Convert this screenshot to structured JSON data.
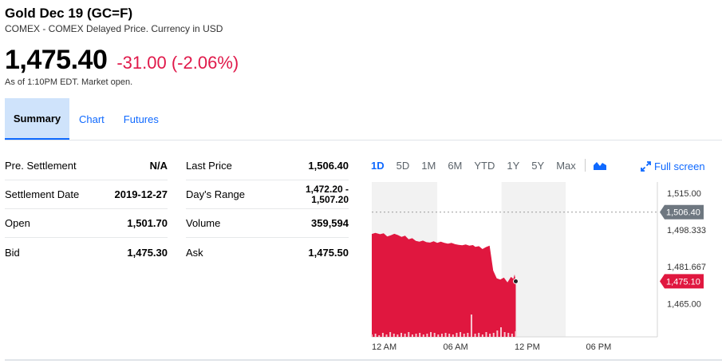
{
  "header": {
    "title": "Gold Dec 19 (GC=F)",
    "subtitle": "COMEX - COMEX Delayed Price. Currency in USD"
  },
  "quote": {
    "price": "1,475.40",
    "change": "-31.00 (-2.06%)",
    "as_of": "As of 1:10PM EDT. Market open.",
    "change_color": "#e0194a"
  },
  "tabs": [
    {
      "label": "Summary",
      "active": true
    },
    {
      "label": "Chart",
      "active": false
    },
    {
      "label": "Futures",
      "active": false
    }
  ],
  "stats_left": [
    {
      "label": "Pre. Settlement",
      "value": "N/A"
    },
    {
      "label": "Settlement Date",
      "value": "2019-12-27"
    },
    {
      "label": "Open",
      "value": "1,501.70"
    },
    {
      "label": "Bid",
      "value": "1,475.30"
    }
  ],
  "stats_right": [
    {
      "label": "Last Price",
      "value": "1,506.40"
    },
    {
      "label": "Day's Range",
      "value_line1": "1,472.20 -",
      "value_line2": "1,507.20"
    },
    {
      "label": "Volume",
      "value": "359,594"
    },
    {
      "label": "Ask",
      "value": "1,475.50"
    }
  ],
  "chart_controls": {
    "ranges": [
      "1D",
      "5D",
      "1M",
      "6M",
      "YTD",
      "1Y",
      "5Y",
      "Max"
    ],
    "active_range": "1D",
    "chart_type_icon": "mountain-chart-icon",
    "fullscreen_label": "Full screen",
    "fullscreen_icon": "expand-arrows-icon"
  },
  "chart_data": {
    "type": "area",
    "y_ticks": [
      "1,515.00",
      "1,498.333",
      "1,481.667",
      "1,465.00"
    ],
    "y_tick_values": [
      1515.0,
      1498.333,
      1481.667,
      1465.0
    ],
    "ylim": [
      1450.0,
      1520.0
    ],
    "x_ticks": [
      "12 AM",
      "06 AM",
      "12 PM",
      "06 PM"
    ],
    "x_tick_hours": [
      0,
      6,
      12,
      18
    ],
    "xlim_hours": [
      0,
      24
    ],
    "prev_close_label": "1,506.40",
    "prev_close_value": 1506.4,
    "last_label": "1,475.10",
    "last_value": 1475.1,
    "x_hours": [
      0,
      0.3,
      0.7,
      1.0,
      1.3,
      1.6,
      1.9,
      2.2,
      2.5,
      2.8,
      3.1,
      3.4,
      3.7,
      4.0,
      4.3,
      4.6,
      4.9,
      5.2,
      5.5,
      5.8,
      6.1,
      6.4,
      6.7,
      7.0,
      7.3,
      7.6,
      7.9,
      8.2,
      8.5,
      8.7,
      9.0,
      9.3,
      9.6,
      9.9,
      10.2,
      10.5,
      10.8,
      11.1,
      11.4,
      11.7,
      11.9,
      12.0,
      12.1
    ],
    "values": [
      1496.5,
      1497.0,
      1496.4,
      1496.8,
      1495.4,
      1495.9,
      1496.6,
      1496.0,
      1495.2,
      1495.7,
      1494.1,
      1494.6,
      1493.4,
      1493.0,
      1493.5,
      1492.8,
      1492.6,
      1493.2,
      1492.5,
      1493.0,
      1492.5,
      1492.1,
      1492.5,
      1491.9,
      1491.6,
      1491.4,
      1491.8,
      1491.2,
      1491.5,
      1490.7,
      1491.0,
      1489.7,
      1490.6,
      1491.2,
      1480.0,
      1476.5,
      1475.9,
      1476.8,
      1474.6,
      1477.1,
      1476.2,
      1478.2,
      1475.1
    ],
    "sessions": [
      {
        "start_hour": 0,
        "end_hour": 5.5,
        "shaded": true
      },
      {
        "start_hour": 5.5,
        "end_hour": 10.9,
        "shaded": false
      },
      {
        "start_hour": 10.9,
        "end_hour": 16.3,
        "shaded": true
      }
    ],
    "area_color": "#e0173f",
    "volume_color": "#f6c9d2"
  }
}
